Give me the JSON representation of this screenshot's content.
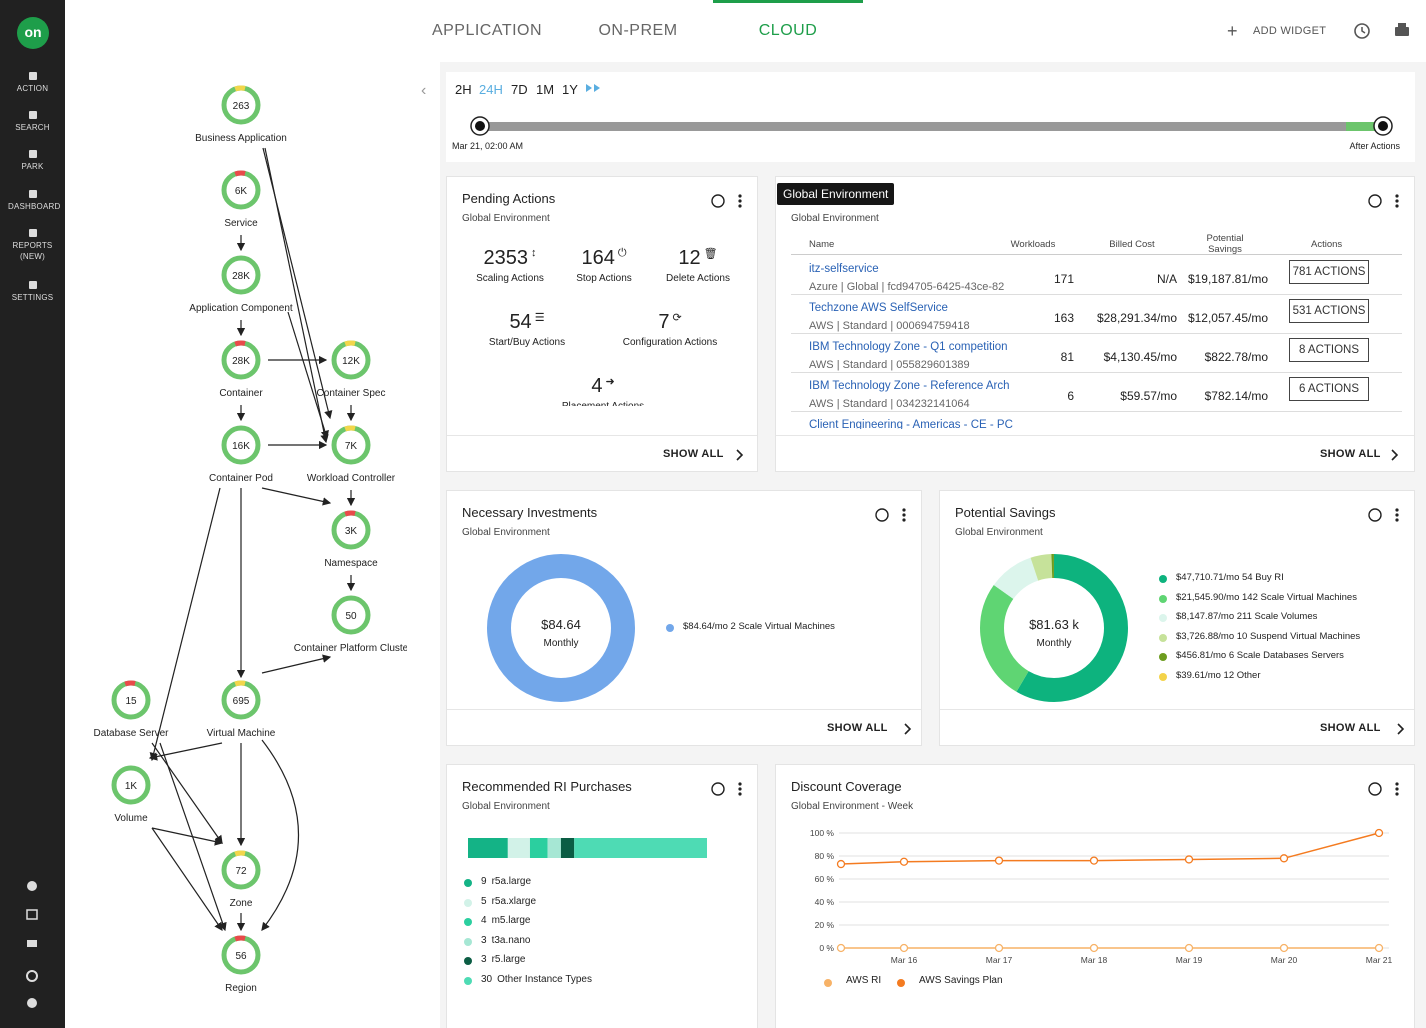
{
  "sidebar": {
    "logo": "on",
    "items": [
      "ACTION",
      "SEARCH",
      "PARK",
      "DASHBOARD",
      "REPORTS (NEW)",
      "SETTINGS"
    ]
  },
  "tabs": [
    "APPLICATION",
    "ON-PREM",
    "CLOUD"
  ],
  "active_tab": 2,
  "toolbar": {
    "add_widget": "ADD WIDGET"
  },
  "supply_chain": {
    "nodes": [
      {
        "label": "Business Application",
        "count": "263"
      },
      {
        "label": "Service",
        "count": "6K"
      },
      {
        "label": "Application Component",
        "count": "28K"
      },
      {
        "label": "Container",
        "count": "28K"
      },
      {
        "label": "Container Spec",
        "count": "12K"
      },
      {
        "label": "Container Pod",
        "count": "16K"
      },
      {
        "label": "Workload Controller",
        "count": "7K"
      },
      {
        "label": "Namespace",
        "count": "3K"
      },
      {
        "label": "Container Platform Cluste",
        "count": "50"
      },
      {
        "label": "Database Server",
        "count": "15"
      },
      {
        "label": "Virtual Machine",
        "count": "695"
      },
      {
        "label": "Volume",
        "count": "1K"
      },
      {
        "label": "Zone",
        "count": "72"
      },
      {
        "label": "Region",
        "count": "56"
      }
    ]
  },
  "timeline": {
    "ranges": [
      "2H",
      "24H",
      "7D",
      "1M",
      "1Y"
    ],
    "selected": 1,
    "start_label": "Mar 21, 02:00 AM",
    "end_label": "After Actions"
  },
  "pending_actions": {
    "title": "Pending Actions",
    "subtitle": "Global Environment",
    "items": [
      {
        "value": "2353",
        "label": "Scaling Actions"
      },
      {
        "value": "164",
        "label": "Stop Actions"
      },
      {
        "value": "12",
        "label": "Delete Actions"
      },
      {
        "value": "54",
        "label": "Start/Buy Actions"
      },
      {
        "value": "7",
        "label": "Configuration Actions"
      },
      {
        "value": "4",
        "label": "Placement Actions"
      }
    ],
    "show_all": "SHOW ALL"
  },
  "accounts": {
    "tooltip": "Global Environment",
    "subtitle": "Global Environment",
    "columns": [
      "Name",
      "Workloads",
      "Billed Cost",
      "Potential Savings",
      "Actions"
    ],
    "rows": [
      {
        "name": "itz-selfservice",
        "detail": "Azure | Global | fcd94705-6425-43ce-82",
        "workloads": "171",
        "billed": "N/A",
        "savings": "$19,187.81/mo",
        "actions": "781 ACTIONS"
      },
      {
        "name": "Techzone AWS SelfService",
        "detail": "AWS | Standard | 000694759418",
        "workloads": "163",
        "billed": "$28,291.34/mo",
        "savings": "$12,057.45/mo",
        "actions": "531 ACTIONS"
      },
      {
        "name": "IBM Technology Zone - Q1 competition",
        "detail": "AWS | Standard | 055829601389",
        "workloads": "81",
        "billed": "$4,130.45/mo",
        "savings": "$822.78/mo",
        "actions": "8 ACTIONS"
      },
      {
        "name": "IBM Technology Zone - Reference Arch",
        "detail": "AWS | Standard | 034232141064",
        "workloads": "6",
        "billed": "$59.57/mo",
        "savings": "$782.14/mo",
        "actions": "6 ACTIONS"
      },
      {
        "name": "Client Engineering - Americas - CE - PC"
      }
    ],
    "show_all": "SHOW ALL"
  },
  "necessary_investments": {
    "title": "Necessary Investments",
    "subtitle": "Global Environment",
    "center_value": "$84.64",
    "center_label": "Monthly",
    "segments": [
      {
        "value": 84.64,
        "label": "$84.64/mo 2 Scale Virtual Machines",
        "color": "#72a7ea"
      }
    ],
    "show_all": "SHOW ALL"
  },
  "potential_savings": {
    "title": "Potential Savings",
    "subtitle": "Global Environment",
    "center_value": "$81.63 k",
    "center_label": "Monthly",
    "segments": [
      {
        "value": 47710.71,
        "label": "$47,710.71/mo 54 Buy RI",
        "color": "#0db37e"
      },
      {
        "value": 21545.9,
        "label": "$21,545.90/mo 142 Scale Virtual Machines",
        "color": "#5fd573"
      },
      {
        "value": 8147.87,
        "label": "$8,147.87/mo 211 Scale Volumes",
        "color": "#dcf5ec"
      },
      {
        "value": 3726.88,
        "label": "$3,726.88/mo 10 Suspend Virtual Machines",
        "color": "#c6e29a"
      },
      {
        "value": 456.81,
        "label": "$456.81/mo 6 Scale Databases Servers",
        "color": "#6d9c1f"
      },
      {
        "value": 39.61,
        "label": "$39.61/mo 12 Other",
        "color": "#f3d34a"
      }
    ],
    "show_all": "SHOW ALL"
  },
  "ri_purchases": {
    "title": "Recommended RI Purchases",
    "subtitle": "Global Environment",
    "items": [
      {
        "count": 9,
        "name": "r5a.large",
        "color": "#14b386"
      },
      {
        "count": 5,
        "name": "r5a.xlarge",
        "color": "#d2f2e8"
      },
      {
        "count": 4,
        "name": "m5.large",
        "color": "#2bcf9f"
      },
      {
        "count": 3,
        "name": "t3a.nano",
        "color": "#a6e7d4"
      },
      {
        "count": 3,
        "name": "r5.large",
        "color": "#0b5d44"
      },
      {
        "count": 30,
        "name": "Other Instance Types",
        "color": "#4edbb4"
      }
    ]
  },
  "discount_coverage": {
    "title": "Discount Coverage",
    "subtitle": "Global Environment - Week",
    "chart": {
      "type": "line",
      "categories": [
        null,
        "Mar 16",
        "Mar 17",
        "Mar 18",
        "Mar 19",
        "Mar 20",
        "Mar 21"
      ],
      "ylim": [
        0,
        100
      ],
      "yticks": [
        {
          "value": 0,
          "label": "0 %"
        },
        {
          "value": 20,
          "label": "20 %"
        },
        {
          "value": 40,
          "label": "40 %"
        },
        {
          "value": 60,
          "label": "60 %"
        },
        {
          "value": 80,
          "label": "80 %"
        },
        {
          "value": 100,
          "label": "100 %"
        }
      ],
      "grid": true,
      "series": [
        {
          "name": "AWS RI",
          "color": "#f7b267",
          "values": [
            0,
            0,
            0,
            0,
            0,
            0,
            0
          ]
        },
        {
          "name": "AWS Savings Plan",
          "color": "#f47b20",
          "values": [
            73,
            75,
            76,
            76,
            77,
            78,
            100
          ]
        }
      ]
    }
  }
}
